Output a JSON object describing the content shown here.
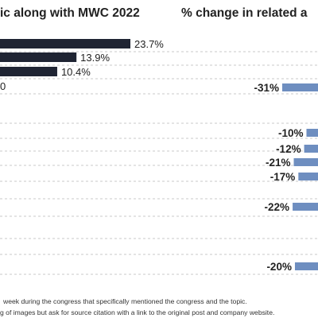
{
  "titles": {
    "left": "ic along with MWC 2022",
    "right": "% change in related a"
  },
  "footnotes": {
    "line1": "week during the congress that specifically mentioned the congress and the topic.",
    "line2": "g of images but ask for source citation with a link to the original post and company website."
  },
  "colors": {
    "dark_bar": "#1f2433",
    "blue_bar": "#6e8ec0",
    "dash": "#b8b8b8",
    "text": "#222222"
  },
  "chart_data": [
    {
      "type": "bar",
      "orientation": "horizontal",
      "title": "ic along with MWC 2022",
      "values": [
        23.7,
        13.9,
        10.4,
        0
      ],
      "value_labels": [
        "23.7%",
        "13.9%",
        "10.4%",
        "0%"
      ],
      "visible_value_labels": [
        "23.7%",
        "13.9%",
        "10.4%",
        "0"
      ],
      "categories": [
        "",
        "",
        "",
        ""
      ],
      "xlabel": "",
      "ylabel": ""
    },
    {
      "type": "bar",
      "orientation": "horizontal",
      "title": "% change in related a",
      "values": [
        -31,
        -10,
        -12,
        -21,
        -17,
        -22,
        -20
      ],
      "value_labels": [
        "-31%",
        "-10%",
        "-12%",
        "-21%",
        "-17%",
        "-22%",
        "-20%"
      ],
      "categories": [
        "",
        "",
        "",
        "",
        "",
        "",
        ""
      ],
      "xlabel": "",
      "ylabel": ""
    }
  ]
}
